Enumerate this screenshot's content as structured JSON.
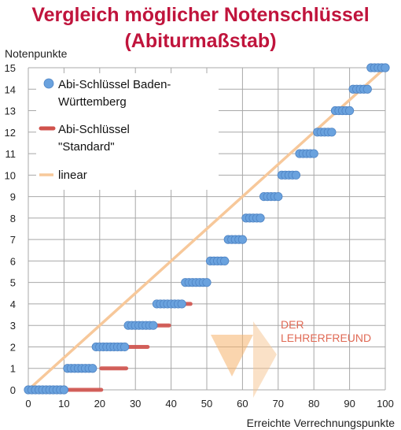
{
  "title_line1": "Vergleich möglicher Notenschlüssel",
  "title_line2": "(Abiturmaßstab)",
  "watermark": {
    "line1": "DER",
    "line2": "LEHRERFREUND"
  },
  "chart_data": {
    "type": "scatter",
    "ylabel": "Notenpunkte",
    "xlabel": "Erreichte Verrechnungspunkte",
    "xlim": [
      0,
      100
    ],
    "ylim": [
      0,
      15
    ],
    "x_ticks": [
      0,
      10,
      20,
      30,
      40,
      50,
      60,
      70,
      80,
      90,
      100
    ],
    "y_ticks": [
      0,
      1,
      2,
      3,
      4,
      5,
      6,
      7,
      8,
      9,
      10,
      11,
      12,
      13,
      14,
      15
    ],
    "grid": true,
    "legend_position": "top-left",
    "series": [
      {
        "name": "Abi-Schlüssel Baden-Württemberg",
        "marker": "circle",
        "color": "#6aa2de",
        "ranges": [
          {
            "y": 0,
            "x_from": 0,
            "x_to": 10
          },
          {
            "y": 1,
            "x_from": 11,
            "x_to": 18
          },
          {
            "y": 2,
            "x_from": 19,
            "x_to": 27
          },
          {
            "y": 3,
            "x_from": 28,
            "x_to": 35
          },
          {
            "y": 4,
            "x_from": 36,
            "x_to": 43
          },
          {
            "y": 5,
            "x_from": 44,
            "x_to": 50
          },
          {
            "y": 6,
            "x_from": 51,
            "x_to": 55
          },
          {
            "y": 7,
            "x_from": 56,
            "x_to": 60
          },
          {
            "y": 8,
            "x_from": 61,
            "x_to": 65
          },
          {
            "y": 9,
            "x_from": 66,
            "x_to": 70
          },
          {
            "y": 10,
            "x_from": 71,
            "x_to": 75
          },
          {
            "y": 11,
            "x_from": 76,
            "x_to": 80
          },
          {
            "y": 12,
            "x_from": 81,
            "x_to": 85
          },
          {
            "y": 13,
            "x_from": 86,
            "x_to": 90
          },
          {
            "y": 14,
            "x_from": 91,
            "x_to": 95
          },
          {
            "y": 15,
            "x_from": 96,
            "x_to": 100
          }
        ]
      },
      {
        "name": "Abi-Schlüssel \"Standard\"",
        "marker": "dash",
        "color": "#d0524c",
        "ranges": [
          {
            "y": 0,
            "x_from": 0,
            "x_to": 20
          },
          {
            "y": 1,
            "x_from": 20,
            "x_to": 27
          },
          {
            "y": 2,
            "x_from": 27,
            "x_to": 33
          },
          {
            "y": 3,
            "x_from": 33,
            "x_to": 39
          },
          {
            "y": 4,
            "x_from": 40,
            "x_to": 45
          },
          {
            "y": 5,
            "x_from": 45,
            "x_to": 50
          },
          {
            "y": 6,
            "x_from": 50,
            "x_to": 55
          },
          {
            "y": 7,
            "x_from": 55,
            "x_to": 60
          },
          {
            "y": 8,
            "x_from": 60,
            "x_to": 65
          },
          {
            "y": 9,
            "x_from": 65,
            "x_to": 70
          },
          {
            "y": 10,
            "x_from": 70,
            "x_to": 75
          },
          {
            "y": 11,
            "x_from": 75,
            "x_to": 80
          },
          {
            "y": 12,
            "x_from": 80,
            "x_to": 85
          },
          {
            "y": 13,
            "x_from": 85,
            "x_to": 90
          },
          {
            "y": 14,
            "x_from": 90,
            "x_to": 95
          },
          {
            "y": 15,
            "x_from": 95,
            "x_to": 100
          }
        ]
      },
      {
        "name": "linear",
        "marker": "line",
        "color": "#f7c89a",
        "points": [
          [
            0,
            0
          ],
          [
            100,
            15
          ]
        ]
      }
    ]
  }
}
